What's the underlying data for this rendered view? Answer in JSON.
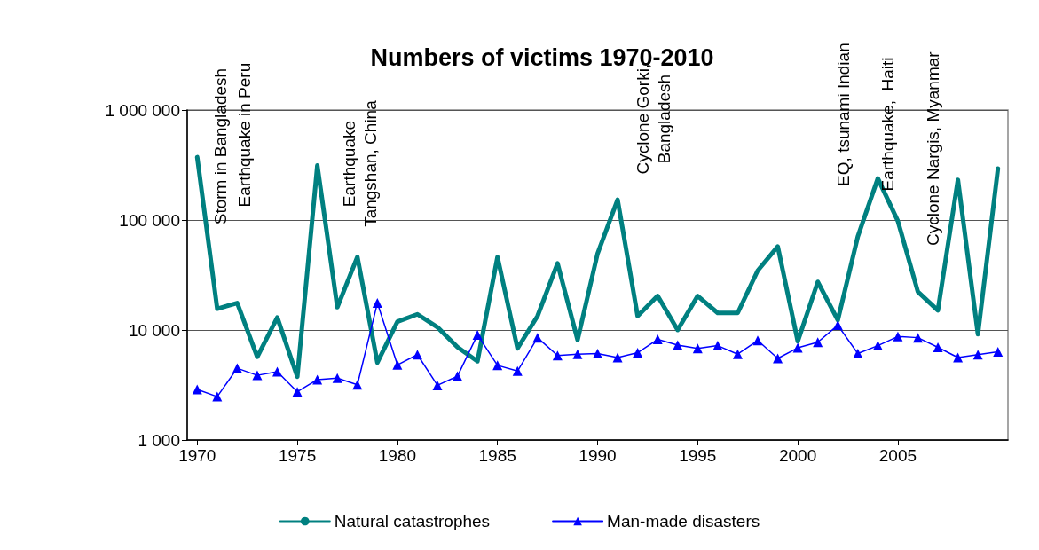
{
  "chart_data": {
    "type": "line",
    "title": "Numbers of victims 1970-2010",
    "x": [
      1970,
      1971,
      1972,
      1973,
      1974,
      1975,
      1976,
      1977,
      1978,
      1979,
      1980,
      1981,
      1982,
      1983,
      1984,
      1985,
      1986,
      1987,
      1988,
      1989,
      1990,
      1991,
      1992,
      1993,
      1994,
      1995,
      1996,
      1997,
      1998,
      1999,
      2000,
      2001,
      2002,
      2003,
      2004,
      2005,
      2006,
      2007,
      2008,
      2009,
      2010
    ],
    "series": [
      {
        "name": "Natural catastrophes",
        "color": "#008080",
        "marker": "none",
        "values": [
          373000,
          15600,
          17600,
          5700,
          13000,
          3760,
          313000,
          16100,
          46200,
          5060,
          11900,
          13900,
          10600,
          7000,
          5200,
          46000,
          6800,
          13400,
          40400,
          8130,
          49600,
          153000,
          13400,
          20400,
          10000,
          20400,
          14300,
          14300,
          34700,
          57500,
          7900,
          27400,
          12300,
          70800,
          239000,
          98000,
          22300,
          15100,
          232000,
          9150,
          294000
        ]
      },
      {
        "name": "Man-made disasters",
        "color": "#0000ff",
        "marker": "triangle",
        "values": [
          2880,
          2480,
          4490,
          3870,
          4180,
          2740,
          3540,
          3650,
          3180,
          17600,
          4820,
          5970,
          3140,
          3800,
          9040,
          4770,
          4230,
          8520,
          5860,
          6030,
          6110,
          5620,
          6220,
          8220,
          7300,
          6800,
          7210,
          6030,
          8030,
          5520,
          6890,
          7740,
          11060,
          6110,
          7210,
          8730,
          8520,
          6960,
          5620,
          5970,
          6340
        ]
      }
    ],
    "log": "y",
    "grid": "y",
    "legend": "bottom",
    "xlim": [
      1969.5,
      2010.5
    ],
    "xticks": [
      1970,
      1975,
      1980,
      1985,
      1990,
      1995,
      2000,
      2005
    ],
    "ylim": [
      1000,
      1000000
    ],
    "yticks": [
      {
        "value": 1000,
        "label": "1 000"
      },
      {
        "value": 10000,
        "label": "10 000"
      },
      {
        "value": 100000,
        "label": "100 000"
      },
      {
        "value": 1000000,
        "label": "1 000 000"
      }
    ],
    "annotations": [
      {
        "text": "Storm in Bangladesh",
        "x": 1970,
        "y": 373000
      },
      {
        "text": "Earthquake in Peru",
        "x": 1970,
        "y": 373000
      },
      {
        "text": "Earthquake\nTangshan, China",
        "x": 1976,
        "y": 313000
      },
      {
        "text": "Cyclone Gorki,\nBangladesh",
        "x": 1991,
        "y": 153000
      },
      {
        "text": "EQ, tsunami Indian",
        "x": 2004,
        "y": 239000
      },
      "Earthquake,  Haiti",
      {
        "text": "Cyclone Nargis, Myanmar",
        "x": 2008,
        "y": 232000
      }
    ]
  }
}
